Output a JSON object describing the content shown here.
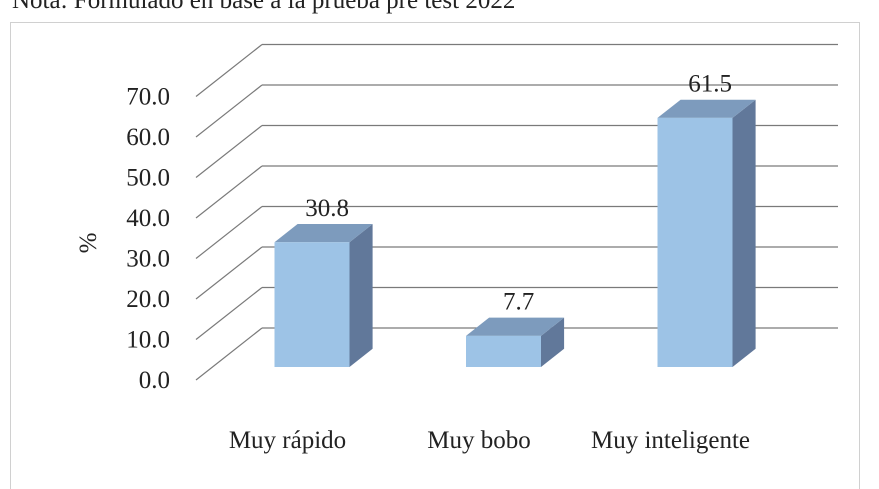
{
  "note": "Nota: Formulado en base a la prueba pre test 2022",
  "chart_data": {
    "type": "bar3d",
    "ylabel": "%",
    "categories": [
      "Muy rápido",
      "Muy bobo",
      "Muy inteligente"
    ],
    "values": [
      30.8,
      7.7,
      61.5
    ],
    "colors": {
      "front": "#9dc3e6",
      "top": "#7d9bbd",
      "side": "#61789a"
    },
    "ylim": [
      0,
      70
    ],
    "yticks": [
      {
        "value": 0,
        "label": "0.0"
      },
      {
        "value": 10,
        "label": "10.0"
      },
      {
        "value": 20,
        "label": "20.0"
      },
      {
        "value": 30,
        "label": "30.0"
      },
      {
        "value": 40,
        "label": "40.0"
      },
      {
        "value": 50,
        "label": "50.0"
      },
      {
        "value": 60,
        "label": "60.0"
      },
      {
        "value": 70,
        "label": "70.0"
      }
    ],
    "grid": true
  }
}
